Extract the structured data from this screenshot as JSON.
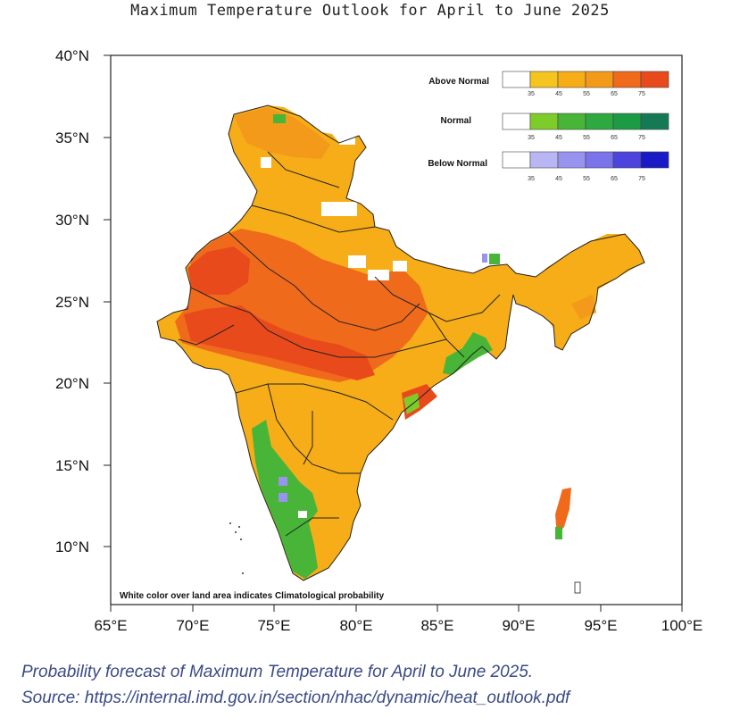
{
  "title": "Maximum Temperature Outlook for April to June 2025",
  "axes": {
    "x_ticks": [
      "65°E",
      "70°E",
      "75°E",
      "80°E",
      "85°E",
      "90°E",
      "95°E",
      "100°E"
    ],
    "y_ticks": [
      "40°N",
      "35°N",
      "30°N",
      "25°N",
      "20°N",
      "15°N",
      "10°N"
    ]
  },
  "legend": [
    {
      "label": "Above Normal",
      "colors": [
        "#ffffff",
        "#f6c41f",
        "#f6ad17",
        "#f39a1a",
        "#f06a1c",
        "#e94a1c"
      ],
      "ticks": [
        "35",
        "45",
        "55",
        "65",
        "75"
      ]
    },
    {
      "label": "Normal",
      "colors": [
        "#ffffff",
        "#7dcc2a",
        "#48b538",
        "#2da940",
        "#1c9a44",
        "#147a56"
      ],
      "ticks": [
        "35",
        "45",
        "55",
        "65",
        "75"
      ]
    },
    {
      "label": "Below Normal",
      "colors": [
        "#ffffff",
        "#b9b6f3",
        "#9893ee",
        "#7a73ea",
        "#4d44de",
        "#1a1ac6"
      ],
      "ticks": [
        "35",
        "45",
        "55",
        "65",
        "75"
      ]
    }
  ],
  "note": "White color over land area indicates Climatological probability",
  "caption": {
    "line1": "Probability forecast of Maximum Temperature for April to June 2025.",
    "line2": "Source: https://internal.imd.gov.in/section/nhac/dynamic/heat_outlook.pdf"
  }
}
